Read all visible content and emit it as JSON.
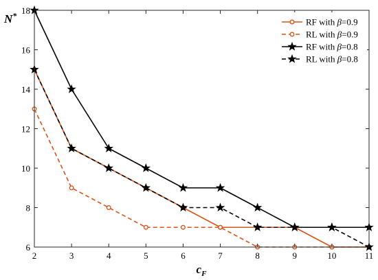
{
  "chart_data": {
    "type": "line",
    "xlabel_main": "c",
    "xlabel_sub": "F",
    "ylabel_main": "N",
    "ylabel_sup": "*",
    "x": [
      2,
      3,
      4,
      5,
      6,
      7,
      8,
      9,
      10,
      11
    ],
    "xlim": [
      2,
      11
    ],
    "ylim": [
      6,
      18
    ],
    "xticks": [
      2,
      3,
      4,
      5,
      6,
      7,
      8,
      9,
      10,
      11
    ],
    "yticks": [
      6,
      8,
      10,
      12,
      14,
      16,
      18
    ],
    "grid": false,
    "legend_position": "top-right",
    "series": [
      {
        "name_prefix": "RF with ",
        "name_symbol": "β",
        "name_suffix": "=0.9",
        "values": [
          15,
          11,
          10,
          9,
          8,
          7,
          7,
          7,
          6,
          6
        ],
        "color": "#D95319",
        "line_style": "solid",
        "marker": "filled-circle"
      },
      {
        "name_prefix": "RL with ",
        "name_symbol": "β",
        "name_suffix": "=0.9",
        "values": [
          13,
          9,
          8,
          7,
          7,
          7,
          6,
          6,
          6,
          6
        ],
        "color": "#D95319",
        "line_style": "dashed",
        "marker": "open-circle"
      },
      {
        "name_prefix": "RF with ",
        "name_symbol": "β",
        "name_suffix": "=0.8",
        "values": [
          18,
          14,
          11,
          10,
          9,
          9,
          8,
          7,
          7,
          7
        ],
        "color": "#000000",
        "line_style": "solid",
        "marker": "star"
      },
      {
        "name_prefix": "RL with ",
        "name_symbol": "β",
        "name_suffix": "=0.8",
        "values": [
          15,
          11,
          10,
          9,
          8,
          8,
          7,
          7,
          7,
          6
        ],
        "color": "#000000",
        "line_style": "dashed",
        "marker": "star"
      }
    ]
  }
}
